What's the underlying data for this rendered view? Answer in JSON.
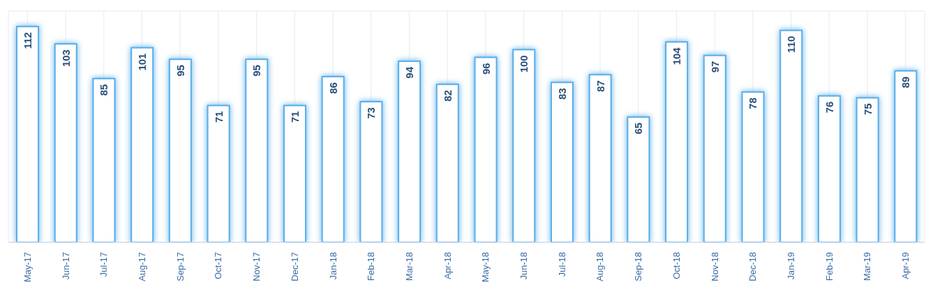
{
  "chart_data": {
    "type": "bar",
    "categories": [
      "May-17",
      "Jun-17",
      "Jul-17",
      "Aug-17",
      "Sep-17",
      "Oct-17",
      "Nov-17",
      "Dec-17",
      "Jan-18",
      "Feb-18",
      "Mar-18",
      "Apr-18",
      "May-18",
      "Jun-18",
      "Jul-18",
      "Aug-18",
      "Sep-18",
      "Oct-18",
      "Nov-18",
      "Dec-18",
      "Jan-19",
      "Feb-19",
      "Mar-19",
      "Apr-19"
    ],
    "values": [
      112,
      103,
      85,
      101,
      95,
      71,
      95,
      71,
      86,
      73,
      94,
      82,
      96,
      100,
      83,
      87,
      65,
      104,
      97,
      78,
      110,
      76,
      75,
      89
    ],
    "color": "#5aaeea",
    "ylim": [
      0,
      120
    ],
    "tick_labels": "x",
    "grid": true,
    "data_labels": true
  }
}
